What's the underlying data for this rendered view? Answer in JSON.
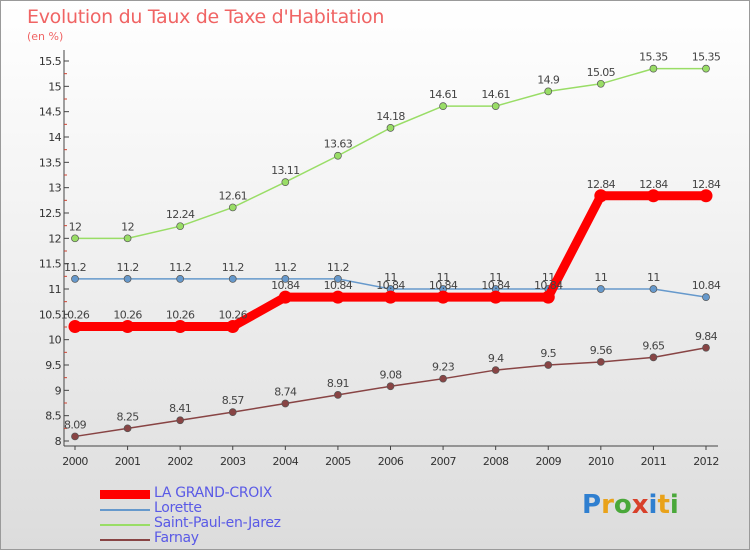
{
  "chart_data": {
    "type": "line",
    "title": "Evolution du Taux de Taxe d'Habitation",
    "subtitle": "(en %)",
    "xlabel": "",
    "ylabel": "",
    "x": [
      2000,
      2001,
      2002,
      2003,
      2004,
      2005,
      2006,
      2007,
      2008,
      2009,
      2010,
      2011,
      2012
    ],
    "ylim": [
      8,
      15.5
    ],
    "yticks": [
      "8",
      "8.5",
      "9",
      "9.5",
      "10",
      "10.5",
      "11",
      "11.5",
      "12",
      "12.5",
      "13",
      "13.5",
      "14",
      "14.5",
      "15",
      "15.5"
    ],
    "grid": false,
    "legend_position": "bottom-left",
    "series": [
      {
        "name": "LA GRAND-CROIX",
        "color": "#ff0000",
        "values": [
          10.26,
          10.26,
          10.26,
          10.26,
          10.84,
          10.84,
          10.84,
          10.84,
          10.84,
          10.84,
          12.84,
          12.84,
          12.84
        ],
        "labels": [
          "10.26",
          "10.26",
          "10.26",
          "10.26",
          "10.84",
          "10.84",
          "10.84",
          "10.84",
          "10.84",
          "10.84",
          "12.84",
          "12.84",
          "12.84"
        ]
      },
      {
        "name": "Lorette",
        "color": "#6699cc",
        "values": [
          11.2,
          11.2,
          11.2,
          11.2,
          11.2,
          11.2,
          11,
          11,
          11,
          11,
          11,
          11,
          10.84
        ],
        "labels": [
          "11.2",
          "11.2",
          "11.2",
          "11.2",
          "11.2",
          "11.2",
          "11",
          "11",
          "11",
          "11",
          "11",
          "11",
          "10.84"
        ]
      },
      {
        "name": "Saint-Paul-en-Jarez",
        "color": "#99dd66",
        "values": [
          12,
          12,
          12.24,
          12.61,
          13.11,
          13.63,
          14.18,
          14.61,
          14.61,
          14.9,
          15.05,
          15.35,
          15.35
        ],
        "labels": [
          "12",
          "12",
          "12.24",
          "12.61",
          "13.11",
          "13.63",
          "14.18",
          "14.61",
          "14.61",
          "14.9",
          "15.05",
          "15.35",
          "15.35"
        ]
      },
      {
        "name": "Farnay",
        "color": "#884444",
        "values": [
          8.09,
          8.25,
          8.41,
          8.57,
          8.74,
          8.91,
          9.08,
          9.23,
          9.4,
          9.5,
          9.56,
          9.65,
          9.84
        ],
        "labels": [
          "8.09",
          "8.25",
          "8.41",
          "8.57",
          "8.74",
          "8.91",
          "9.08",
          "9.23",
          "9.4",
          "9.5",
          "9.56",
          "9.65",
          "9.84"
        ]
      }
    ]
  },
  "logo": {
    "text": [
      "P",
      "r",
      "o",
      "x",
      "i",
      "t",
      "i"
    ]
  }
}
